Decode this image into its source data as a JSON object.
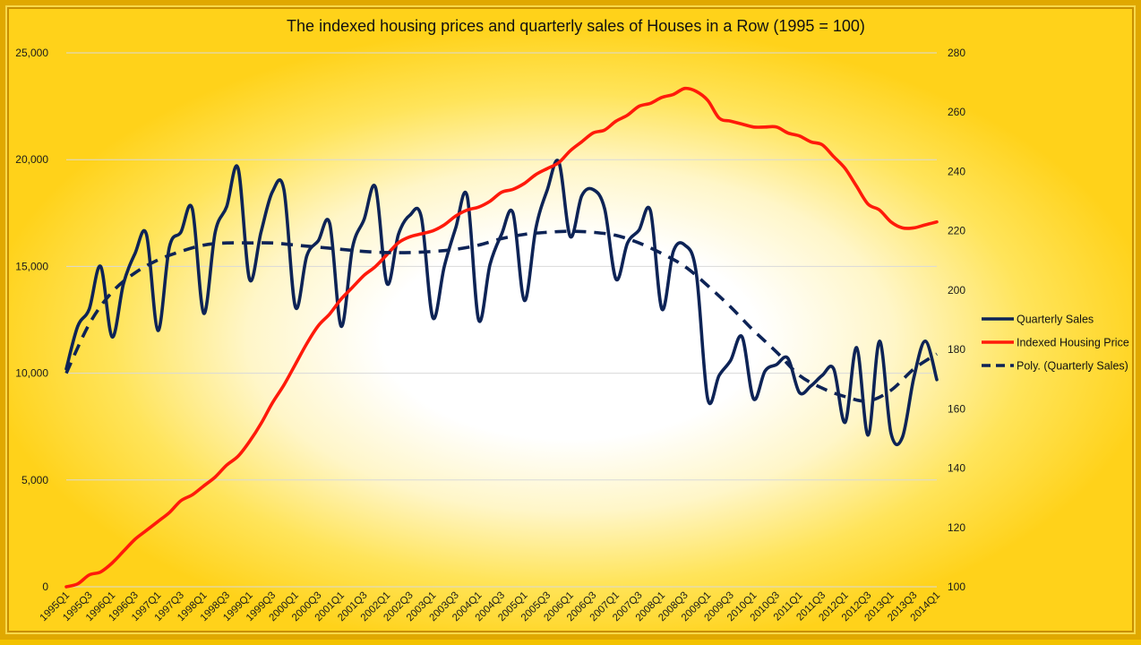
{
  "chart_data": {
    "type": "line",
    "title": "The indexed housing prices and quarterly sales of Houses in a Row (1995 = 100)",
    "xlabel": "",
    "ylabel": "",
    "ylim": [
      0,
      25000
    ],
    "y2lim": [
      100,
      280
    ],
    "left_ticks": [
      "0",
      "5,000",
      "10,000",
      "15,000",
      "20,000",
      "25,000"
    ],
    "left_tick_values": [
      0,
      5000,
      10000,
      15000,
      20000,
      25000
    ],
    "right_ticks": [
      "100",
      "120",
      "140",
      "160",
      "180",
      "200",
      "220",
      "240",
      "260",
      "280"
    ],
    "right_tick_values": [
      100,
      120,
      140,
      160,
      180,
      200,
      220,
      240,
      260,
      280
    ],
    "x_tick_labels": [
      "1995Q1",
      "1995Q3",
      "1996Q1",
      "1996Q3",
      "1997Q1",
      "1997Q3",
      "1998Q1",
      "1998Q3",
      "1999Q1",
      "1999Q3",
      "2000Q1",
      "2000Q3",
      "2001Q1",
      "2001Q3",
      "2002Q1",
      "2002Q3",
      "2003Q1",
      "2003Q3",
      "2004Q1",
      "2004Q3",
      "2005Q1",
      "2005Q3",
      "2006Q1",
      "2006Q3",
      "2007Q1",
      "2007Q3",
      "2008Q1",
      "2008Q3",
      "2009Q1",
      "2009Q3",
      "2010Q1",
      "2010Q3",
      "2011Q1",
      "2011Q3",
      "2012Q1",
      "2012Q3",
      "2013Q1",
      "2013Q3",
      "2014Q1"
    ],
    "grid": true,
    "legend": "right",
    "series": [
      {
        "name": "Quarterly Sales",
        "axis": "left",
        "color": "#0d2356",
        "style": "solid",
        "values": [
          10200,
          12200,
          13000,
          15000,
          11700,
          14200,
          15600,
          16500,
          12000,
          15900,
          16600,
          17700,
          12800,
          16600,
          17800,
          19600,
          14400,
          16600,
          18500,
          18600,
          13100,
          15500,
          16200,
          17000,
          12200,
          15900,
          17200,
          18700,
          14200,
          16500,
          17400,
          17300,
          12600,
          15000,
          16800,
          18300,
          12500,
          15100,
          16500,
          17500,
          13400,
          16800,
          18600,
          19900,
          16400,
          18300,
          18600,
          17700,
          14400,
          16100,
          16700,
          17600,
          13000,
          15700,
          16000,
          14700,
          8800,
          9900,
          10600,
          11700,
          8800,
          10100,
          10400,
          10700,
          9100,
          9400,
          9900,
          10200,
          7700,
          11200,
          7100,
          11500,
          7200,
          7000,
          9800,
          11500,
          9700
        ],
        "x_start_index": 0
      },
      {
        "name": "Indexed Housing Price",
        "axis": "right",
        "color": "#ff1a0a",
        "style": "solid",
        "values": [
          100,
          101,
          104,
          105,
          108,
          112,
          116,
          119,
          122,
          125,
          129,
          131,
          134,
          137,
          141,
          144,
          149,
          155,
          162,
          168,
          175,
          182,
          188,
          192,
          197,
          201,
          205,
          208,
          212,
          216,
          218,
          219,
          220,
          222,
          225,
          227,
          228,
          230,
          233,
          234,
          236,
          239,
          241,
          243,
          247,
          250,
          253,
          254,
          257,
          259,
          262,
          263,
          265,
          266,
          268,
          267,
          264,
          258,
          257,
          256,
          255,
          255,
          255,
          253,
          252,
          250,
          249,
          245,
          241,
          235,
          229,
          227,
          223,
          221,
          221,
          222,
          223
        ],
        "x_start_index": 0
      },
      {
        "name": "Poly. (Quarterly Sales)",
        "axis": "left",
        "color": "#0d2356",
        "style": "dashed",
        "values": [
          10000,
          12300,
          13800,
          14700,
          15300,
          15700,
          16000,
          16100,
          16100,
          16100,
          16000,
          15900,
          15800,
          15700,
          15650,
          15650,
          15700,
          15800,
          16000,
          16300,
          16500,
          16600,
          16650,
          16600,
          16450,
          16100,
          15600,
          15000,
          14100,
          13100,
          12000,
          11000,
          9900,
          9300,
          8900,
          8700,
          9200,
          10200,
          10900
        ],
        "x_start_index": 0
      }
    ]
  }
}
